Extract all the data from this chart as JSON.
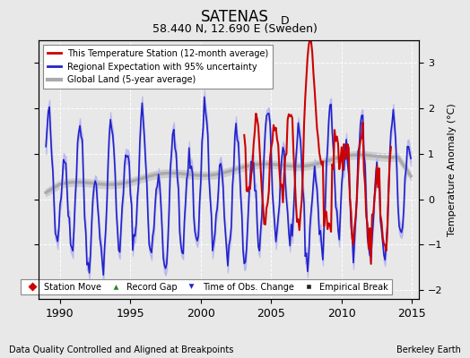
{
  "title": "SATENAS",
  "title_sub": "D",
  "subtitle": "58.440 N, 12.690 E (Sweden)",
  "ylabel": "Temperature Anomaly (°C)",
  "xlabel_left": "Data Quality Controlled and Aligned at Breakpoints",
  "xlabel_right": "Berkeley Earth",
  "xmin": 1988.5,
  "xmax": 2015.5,
  "ymin": -2.2,
  "ymax": 3.5,
  "yticks": [
    -2,
    -1,
    0,
    1,
    2,
    3
  ],
  "xticks": [
    1990,
    1995,
    2000,
    2005,
    2010,
    2015
  ],
  "legend1": "This Temperature Station (12-month average)",
  "legend2": "Regional Expectation with 95% uncertainty",
  "legend3": "Global Land (5-year average)",
  "color_station": "#cc0000",
  "color_regional": "#2222cc",
  "color_regional_fill": "#aaaaee",
  "color_global": "#aaaaaa",
  "color_global_fill": "#cccccc",
  "background_color": "#e8e8e8",
  "plot_background": "#e8e8e8",
  "grid_color": "#ffffff"
}
